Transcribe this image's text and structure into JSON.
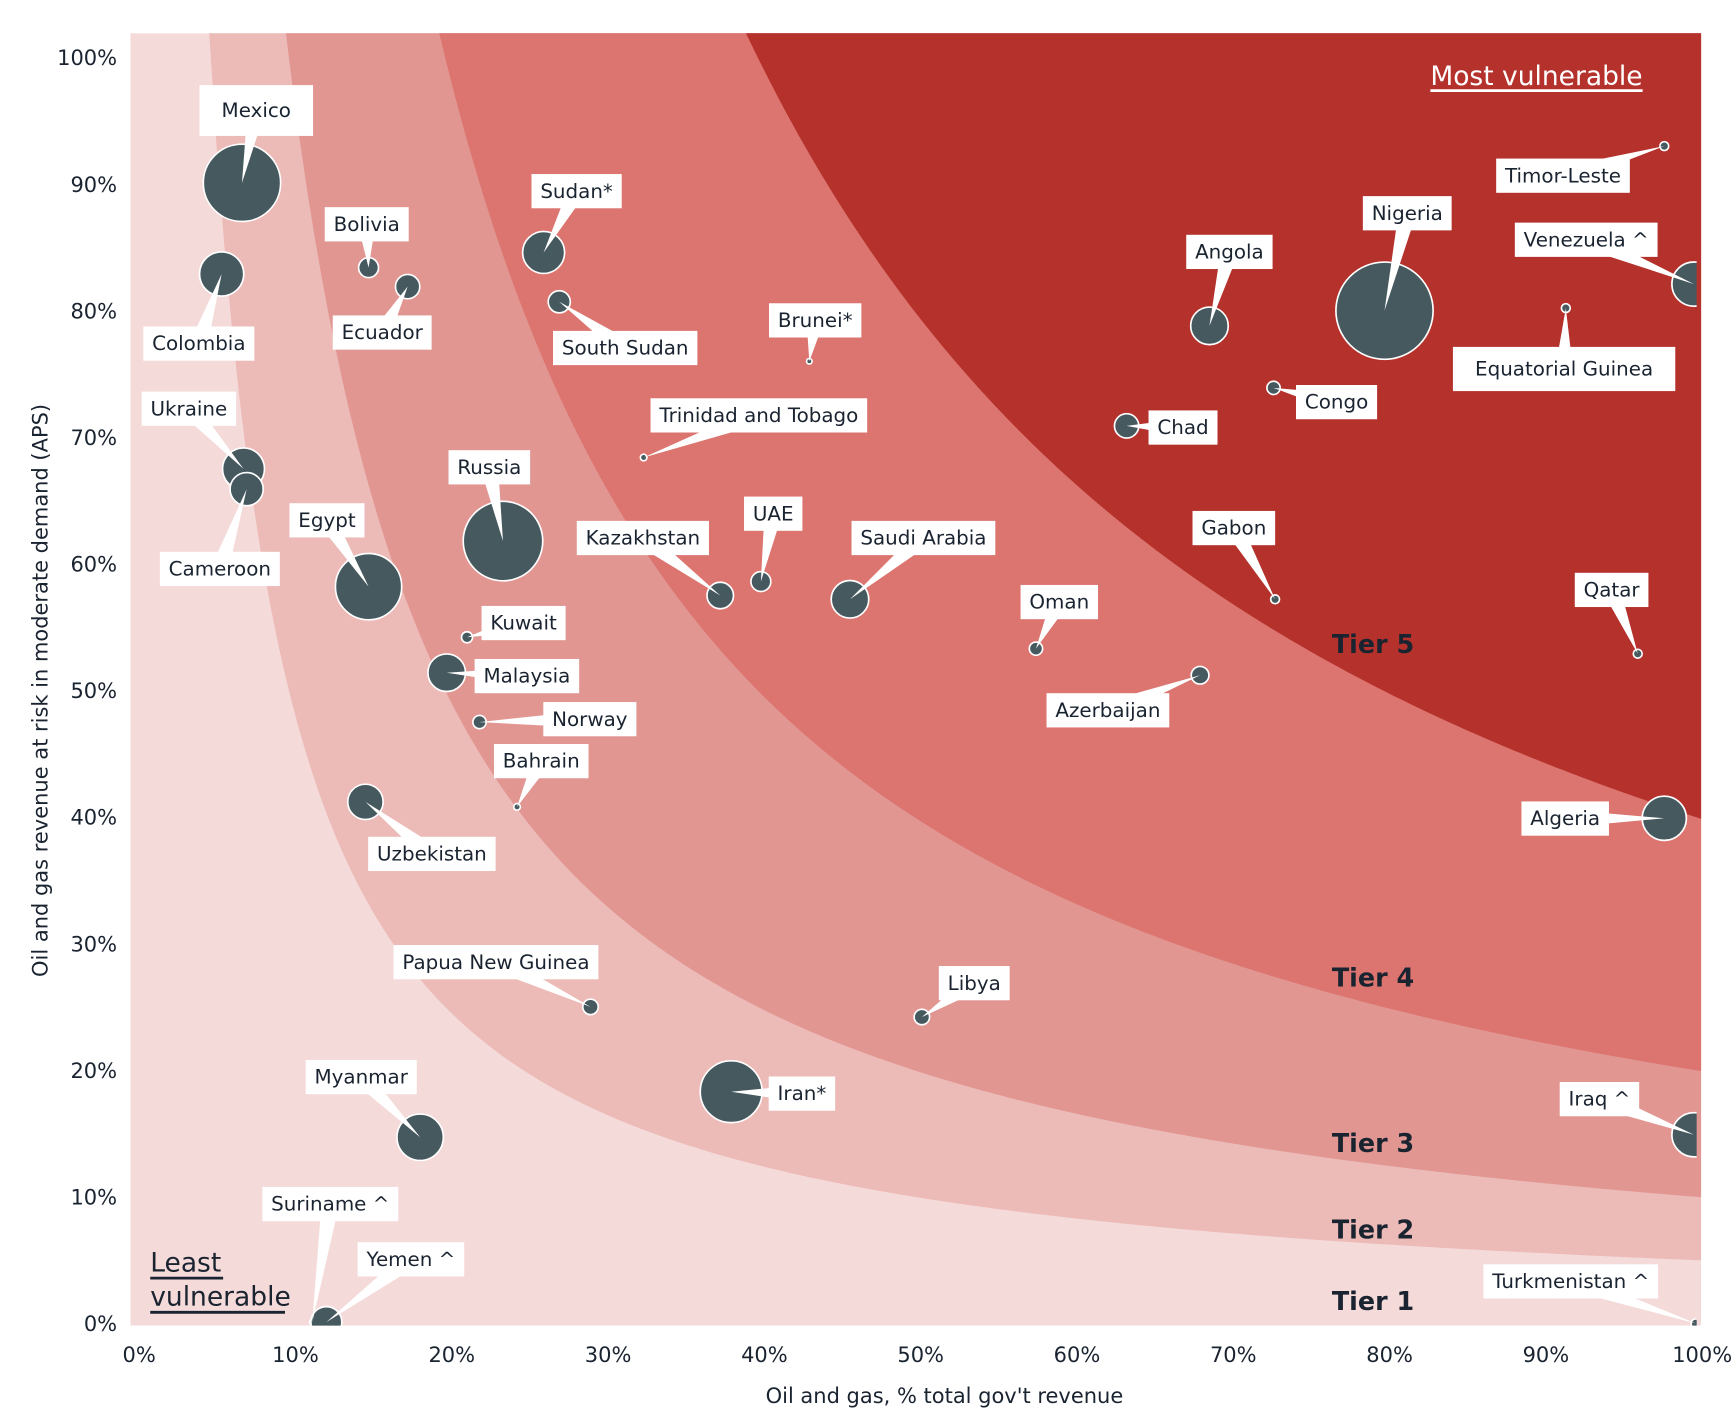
{
  "chart_data": {
    "type": "scatter",
    "variant": "bubble",
    "xlabel": "Oil and gas, % total gov't revenue",
    "ylabel": "Oil and gas revenue at  risk in moderate demand (APS)",
    "xlim": [
      0,
      100
    ],
    "ylim": [
      0,
      102
    ],
    "x_ticks": [
      "0%",
      "10%",
      "20%",
      "30%",
      "40%",
      "50%",
      "60%",
      "70%",
      "80%",
      "90%",
      "100%"
    ],
    "y_ticks": [
      "0%",
      "10%",
      "20%",
      "30%",
      "40%",
      "50%",
      "60%",
      "70%",
      "80%",
      "90%",
      "100%"
    ],
    "grid": false,
    "colors": {
      "bubble": "#46595f",
      "tier1": "#f5dada",
      "tier2": "#ecbab7",
      "tier3": "#e29692",
      "tier4": "#dc746f",
      "tier5": "#b5312b",
      "text": "#1a2330"
    },
    "tiers": [
      {
        "label": "Tier 1",
        "min_product": 0
      },
      {
        "label": "Tier 2",
        "min_product": 0.05
      },
      {
        "label": "Tier 3",
        "min_product": 0.1
      },
      {
        "label": "Tier 4",
        "min_product": 0.2
      },
      {
        "label": "Tier 5",
        "min_product": 0.4
      }
    ],
    "annotations": {
      "most": "Most vulnerable",
      "least_line1": "Least",
      "least_line2": "vulnerable"
    },
    "points": [
      {
        "label": "Mexico",
        "x": 7.0,
        "y": 90.1,
        "size": 35
      },
      {
        "label": "Colombia",
        "x": 5.7,
        "y": 82.9,
        "size": 20
      },
      {
        "label": "Bolivia",
        "x": 15.1,
        "y": 83.4,
        "size": 9
      },
      {
        "label": "Ecuador",
        "x": 17.6,
        "y": 81.9,
        "size": 11
      },
      {
        "label": "Sudan*",
        "x": 26.3,
        "y": 84.6,
        "size": 19
      },
      {
        "label": "South Sudan",
        "x": 27.3,
        "y": 80.7,
        "size": 10
      },
      {
        "label": "Brunei*",
        "x": 43.3,
        "y": 76.0,
        "size": 2
      },
      {
        "label": "Trinidad and Tobago",
        "x": 32.7,
        "y": 68.4,
        "size": 3
      },
      {
        "label": "Ukraine",
        "x": 7.1,
        "y": 67.5,
        "size": 19
      },
      {
        "label": "Cameroon",
        "x": 7.3,
        "y": 65.9,
        "size": 15
      },
      {
        "label": "Russia",
        "x": 23.7,
        "y": 61.8,
        "size": 36
      },
      {
        "label": "Egypt",
        "x": 15.1,
        "y": 58.2,
        "size": 30
      },
      {
        "label": "Kazakhstan",
        "x": 37.6,
        "y": 57.5,
        "size": 12
      },
      {
        "label": "UAE",
        "x": 40.2,
        "y": 58.6,
        "size": 9
      },
      {
        "label": "Saudi Arabia",
        "x": 45.9,
        "y": 57.2,
        "size": 17
      },
      {
        "label": "Kuwait",
        "x": 21.4,
        "y": 54.2,
        "size": 5
      },
      {
        "label": "Malaysia",
        "x": 20.1,
        "y": 51.4,
        "size": 17
      },
      {
        "label": "Norway",
        "x": 22.2,
        "y": 47.5,
        "size": 6
      },
      {
        "label": "Bahrain",
        "x": 24.6,
        "y": 40.8,
        "size": 3
      },
      {
        "label": "Uzbekistan",
        "x": 14.9,
        "y": 41.2,
        "size": 16
      },
      {
        "label": "Oman",
        "x": 57.8,
        "y": 53.3,
        "size": 6
      },
      {
        "label": "Azerbaijan",
        "x": 68.3,
        "y": 51.2,
        "size": 8
      },
      {
        "label": "Gabon",
        "x": 73.1,
        "y": 57.2,
        "size": 4
      },
      {
        "label": "Chad",
        "x": 63.6,
        "y": 70.9,
        "size": 11
      },
      {
        "label": "Congo",
        "x": 73.0,
        "y": 73.9,
        "size": 6
      },
      {
        "label": "Angola",
        "x": 68.9,
        "y": 78.8,
        "size": 17
      },
      {
        "label": "Nigeria",
        "x": 80.1,
        "y": 80.0,
        "size": 44
      },
      {
        "label": "Timor-Leste",
        "x": 98.0,
        "y": 93.0,
        "size": 4
      },
      {
        "label": "Venezuela ^",
        "x": 99.9,
        "y": 82.1,
        "size": 20
      },
      {
        "label": "Equatorial Guinea",
        "x": 91.7,
        "y": 80.2,
        "size": 4
      },
      {
        "label": "Qatar",
        "x": 96.3,
        "y": 52.9,
        "size": 4
      },
      {
        "label": "Algeria",
        "x": 98.0,
        "y": 39.9,
        "size": 20
      },
      {
        "label": "Libya",
        "x": 50.5,
        "y": 24.2,
        "size": 7
      },
      {
        "label": "Papua New Guinea",
        "x": 29.3,
        "y": 25.0,
        "size": 7
      },
      {
        "label": "Iran*",
        "x": 38.3,
        "y": 18.3,
        "size": 28
      },
      {
        "label": "Myanmar",
        "x": 18.4,
        "y": 14.7,
        "size": 21
      },
      {
        "label": "Iraq ^",
        "x": 99.9,
        "y": 14.9,
        "size": 20
      },
      {
        "label": "Suriname ^",
        "x": 11.5,
        "y": 0.1,
        "size": 2
      },
      {
        "label": "Yemen ^",
        "x": 12.4,
        "y": 0.1,
        "size": 14
      },
      {
        "label": "Turkmenistan ^",
        "x": 100,
        "y": 0,
        "size": 4
      }
    ]
  }
}
